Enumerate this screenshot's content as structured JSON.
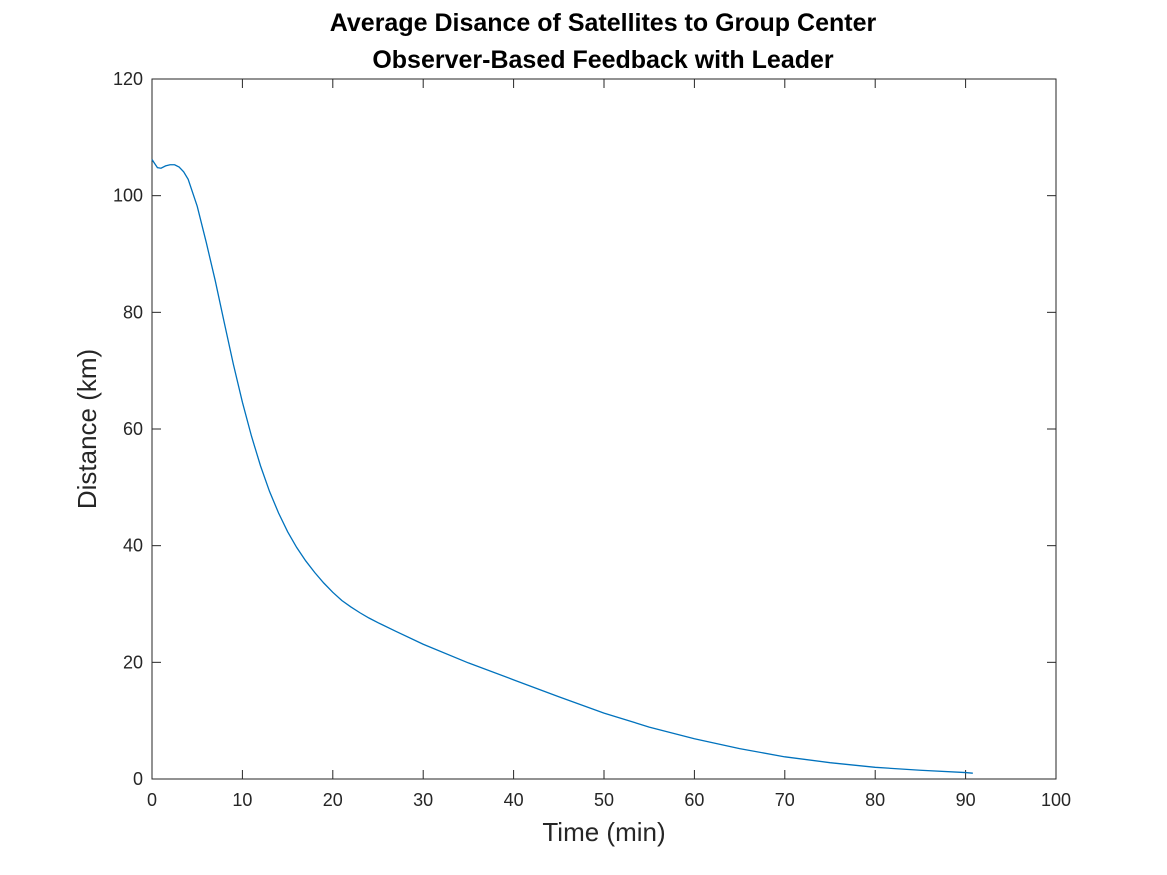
{
  "chart_data": {
    "type": "line",
    "title": "Average Disance of Satellites to Group Center",
    "subtitle": "Observer-Based Feedback with Leader",
    "xlabel": "Time (min)",
    "ylabel": "Distance (km)",
    "xlim": [
      0,
      100
    ],
    "ylim": [
      0,
      120
    ],
    "xticks": [
      0,
      10,
      20,
      30,
      40,
      50,
      60,
      70,
      80,
      90,
      100
    ],
    "yticks": [
      0,
      20,
      40,
      60,
      80,
      100,
      120
    ],
    "grid": false,
    "colors": {
      "line": "#0072BD",
      "axes": "#262626"
    },
    "series": [
      {
        "x": [
          0,
          0.3,
          0.6,
          1.0,
          1.5,
          2.0,
          2.5,
          3.0,
          3.5,
          4.0,
          5.0,
          6.0,
          7.0,
          8.0,
          9.0,
          10,
          11,
          12,
          13,
          14,
          15,
          16,
          17,
          18,
          19,
          20,
          21,
          22,
          23,
          24,
          25,
          27,
          30,
          35,
          40,
          45,
          50,
          55,
          60,
          65,
          70,
          75,
          80,
          85,
          90,
          90.8
        ],
        "values": [
          106.2,
          105.5,
          104.8,
          104.7,
          105.1,
          105.3,
          105.3,
          104.9,
          104.1,
          102.8,
          98.2,
          92.0,
          85.4,
          78.2,
          71.1,
          64.6,
          58.8,
          53.7,
          49.3,
          45.6,
          42.4,
          39.7,
          37.4,
          35.4,
          33.6,
          32.0,
          30.6,
          29.5,
          28.5,
          27.6,
          26.8,
          25.3,
          23.1,
          19.9,
          17.0,
          14.1,
          11.3,
          8.9,
          6.9,
          5.2,
          3.8,
          2.8,
          2.0,
          1.5,
          1.1,
          1.0
        ]
      }
    ]
  }
}
